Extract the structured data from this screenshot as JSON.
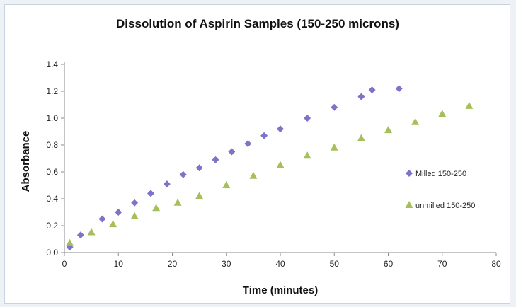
{
  "colors": {
    "milled": "#7b74c9",
    "unmilled": "#a7bf5a"
  },
  "chart_data": {
    "type": "scatter",
    "title": "Dissolution of Aspirin Samples (150-250 microns)",
    "xlabel": "Time  (minutes)",
    "ylabel": "Absorbance",
    "xlim": [
      0,
      80
    ],
    "ylim": [
      0,
      1.4
    ],
    "x_ticks": [
      "0",
      "10",
      "20",
      "30",
      "40",
      "50",
      "60",
      "70",
      "80"
    ],
    "y_ticks": [
      "0.0",
      "0.2",
      "0.4",
      "0.6",
      "0.8",
      "1.0",
      "1.2",
      "1.4"
    ],
    "grid": false,
    "legend_position": "right",
    "series": [
      {
        "name": "Milled 150-250",
        "marker": "diamond",
        "color": "#7b74c9",
        "points": [
          [
            1,
            0.04
          ],
          [
            3,
            0.13
          ],
          [
            7,
            0.25
          ],
          [
            10,
            0.3
          ],
          [
            13,
            0.37
          ],
          [
            16,
            0.44
          ],
          [
            19,
            0.51
          ],
          [
            22,
            0.58
          ],
          [
            25,
            0.63
          ],
          [
            28,
            0.69
          ],
          [
            31,
            0.75
          ],
          [
            34,
            0.81
          ],
          [
            37,
            0.87
          ],
          [
            40,
            0.92
          ],
          [
            45,
            1.0
          ],
          [
            50,
            1.08
          ],
          [
            55,
            1.16
          ],
          [
            57,
            1.21
          ],
          [
            62,
            1.22
          ]
        ]
      },
      {
        "name": "unmilled 150-250",
        "marker": "triangle",
        "color": "#a7bf5a",
        "points": [
          [
            1,
            0.07
          ],
          [
            5,
            0.15
          ],
          [
            9,
            0.21
          ],
          [
            13,
            0.27
          ],
          [
            17,
            0.33
          ],
          [
            21,
            0.37
          ],
          [
            25,
            0.42
          ],
          [
            30,
            0.5
          ],
          [
            35,
            0.57
          ],
          [
            40,
            0.65
          ],
          [
            45,
            0.72
          ],
          [
            50,
            0.78
          ],
          [
            55,
            0.85
          ],
          [
            60,
            0.91
          ],
          [
            65,
            0.97
          ],
          [
            70,
            1.03
          ],
          [
            75,
            1.09
          ]
        ]
      }
    ]
  }
}
